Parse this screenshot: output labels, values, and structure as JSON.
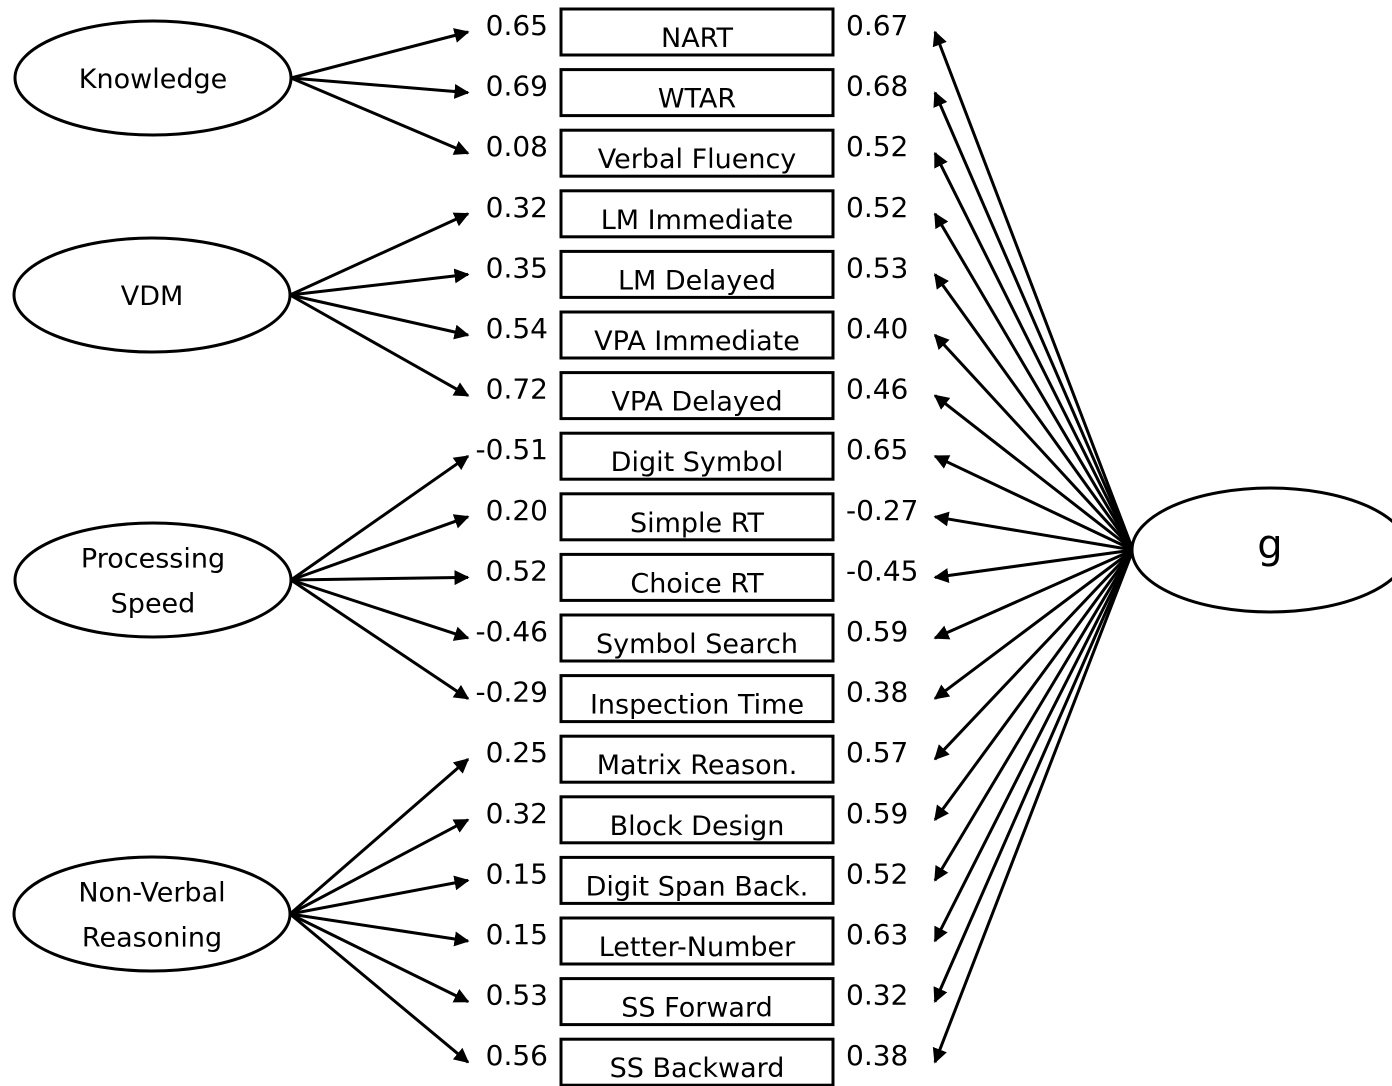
{
  "factors": [
    {
      "id": "knowledge",
      "lines": [
        "Knowledge"
      ]
    },
    {
      "id": "vdm",
      "lines": [
        "VDM"
      ]
    },
    {
      "id": "processing-speed",
      "lines": [
        "Processing",
        "Speed"
      ]
    },
    {
      "id": "non-verbal-reasoning",
      "lines": [
        "Non-Verbal",
        "Reasoning"
      ]
    }
  ],
  "general_factor": {
    "label": "g"
  },
  "indicators": [
    {
      "label": "NART",
      "factor": "knowledge",
      "specific_loading": "0.65",
      "g_loading": "0.67"
    },
    {
      "label": "WTAR",
      "factor": "knowledge",
      "specific_loading": "0.69",
      "g_loading": "0.68"
    },
    {
      "label": "Verbal Fluency",
      "factor": "knowledge",
      "specific_loading": "0.08",
      "g_loading": "0.52"
    },
    {
      "label": "LM Immediate",
      "factor": "vdm",
      "specific_loading": "0.32",
      "g_loading": "0.52"
    },
    {
      "label": "LM Delayed",
      "factor": "vdm",
      "specific_loading": "0.35",
      "g_loading": "0.53"
    },
    {
      "label": "VPA Immediate",
      "factor": "vdm",
      "specific_loading": "0.54",
      "g_loading": "0.40"
    },
    {
      "label": "VPA Delayed",
      "factor": "vdm",
      "specific_loading": "0.72",
      "g_loading": "0.46"
    },
    {
      "label": "Digit Symbol",
      "factor": "processing-speed",
      "specific_loading": "-0.51",
      "g_loading": "0.65"
    },
    {
      "label": "Simple RT",
      "factor": "processing-speed",
      "specific_loading": "0.20",
      "g_loading": "-0.27"
    },
    {
      "label": "Choice RT",
      "factor": "processing-speed",
      "specific_loading": "0.52",
      "g_loading": "-0.45"
    },
    {
      "label": "Symbol Search",
      "factor": "processing-speed",
      "specific_loading": "-0.46",
      "g_loading": "0.59"
    },
    {
      "label": "Inspection Time",
      "factor": "processing-speed",
      "specific_loading": "-0.29",
      "g_loading": "0.38"
    },
    {
      "label": "Matrix Reason.",
      "factor": "non-verbal-reasoning",
      "specific_loading": "0.25",
      "g_loading": "0.57"
    },
    {
      "label": "Block Design",
      "factor": "non-verbal-reasoning",
      "specific_loading": "0.32",
      "g_loading": "0.59"
    },
    {
      "label": "Digit Span Back.",
      "factor": "non-verbal-reasoning",
      "specific_loading": "0.15",
      "g_loading": "0.52"
    },
    {
      "label": "Letter-Number",
      "factor": "non-verbal-reasoning",
      "specific_loading": "0.15",
      "g_loading": "0.63"
    },
    {
      "label": "SS Forward",
      "factor": "non-verbal-reasoning",
      "specific_loading": "0.53",
      "g_loading": "0.32"
    },
    {
      "label": "SS Backward",
      "factor": "non-verbal-reasoning",
      "specific_loading": "0.56",
      "g_loading": "0.38"
    }
  ]
}
